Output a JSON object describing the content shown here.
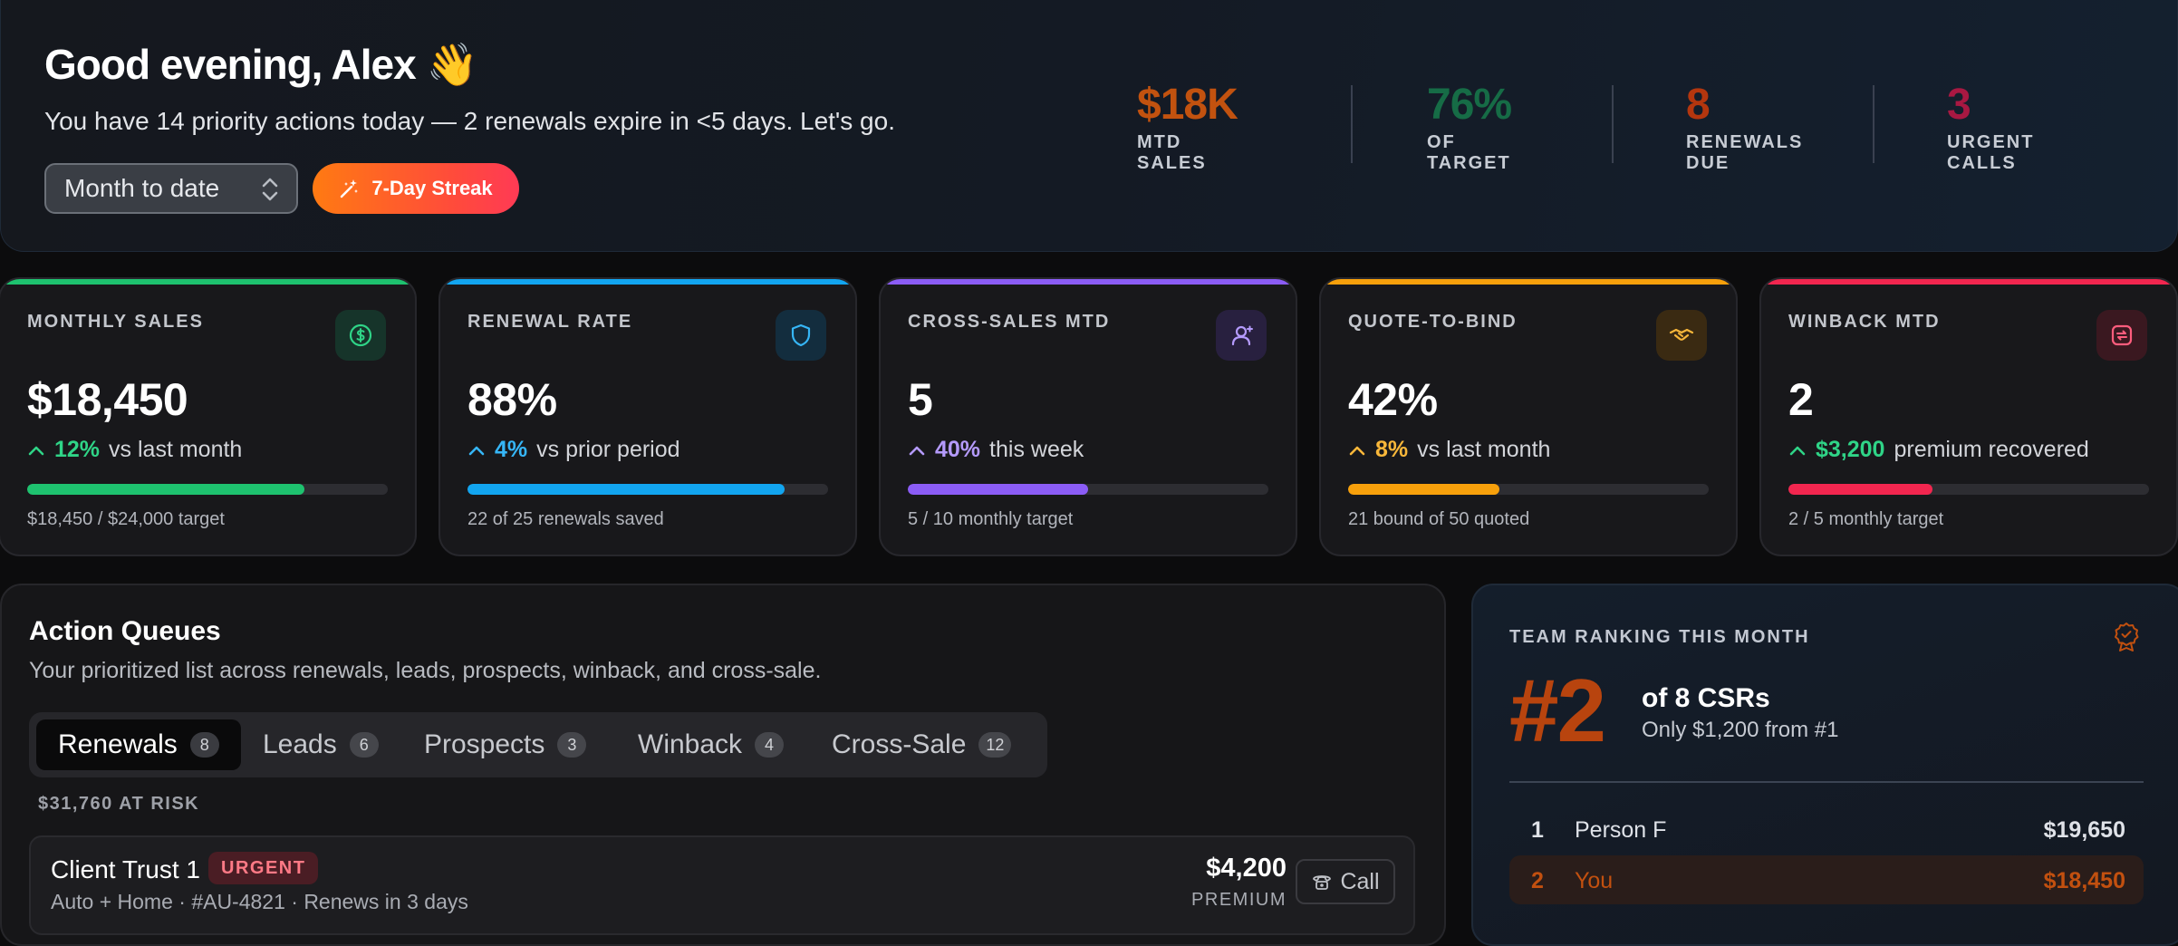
{
  "header": {
    "greeting": "Good evening, Alex 👋",
    "subline": "You have 14 priority actions today — 2 renewals expire in <5 days. Let's go.",
    "period_select": "Month to date",
    "streak_label": "7-Day Streak",
    "kpis": [
      {
        "value": "$18K",
        "label": "MTD SALES",
        "color": "#c2520f"
      },
      {
        "value": "76%",
        "label": "OF TARGET",
        "color": "#166c46"
      },
      {
        "value": "8",
        "label": "RENEWALS DUE",
        "color": "#b4360e"
      },
      {
        "value": "3",
        "label": "URGENT CALLS",
        "color": "#a81842"
      }
    ]
  },
  "cards": [
    {
      "title": "MONTHLY SALES",
      "icon": "dollar-circle-icon",
      "accent": "#1ec26f",
      "value": "$18,450",
      "delta": "12%",
      "delta_text": "vs last month",
      "progress": 0.76875,
      "footer": "$18,450 / $24,000 target"
    },
    {
      "title": "RENEWAL RATE",
      "icon": "shield-icon",
      "accent": "#12a5f0",
      "value": "88%",
      "delta": "4%",
      "delta_text": "vs prior period",
      "progress": 0.88,
      "footer": "22 of 25 renewals saved"
    },
    {
      "title": "CROSS-SALES MTD",
      "icon": "user-plus-icon",
      "accent": "#8b5cf6",
      "value": "5",
      "delta": "40%",
      "delta_text": "this week",
      "progress": 0.5,
      "footer": "5 / 10 monthly target"
    },
    {
      "title": "QUOTE-TO-BIND",
      "icon": "handshake-icon",
      "accent": "#f7a00b",
      "value": "42%",
      "delta": "8%",
      "delta_text": "vs last month",
      "progress": 0.42,
      "footer": "21 bound of 50 quoted"
    },
    {
      "title": "WINBACK MTD",
      "icon": "refresh-box-icon",
      "accent": "#f2264f",
      "value": "2",
      "delta": "$3,200",
      "delta_text": "premium recovered",
      "progress": 0.4,
      "footer": "2 / 5 monthly target"
    }
  ],
  "queues": {
    "title": "Action Queues",
    "subtitle": "Your prioritized list across renewals, leads, prospects, winback, and cross-sale.",
    "tabs": [
      {
        "label": "Renewals",
        "count": "8"
      },
      {
        "label": "Leads",
        "count": "6"
      },
      {
        "label": "Prospects",
        "count": "3"
      },
      {
        "label": "Winback",
        "count": "4"
      },
      {
        "label": "Cross-Sale",
        "count": "12"
      }
    ],
    "at_risk": "$31,760 AT RISK",
    "rows": [
      {
        "client": "Client Trust 1",
        "badge": "URGENT",
        "meta": "Auto + Home · #AU-4821 · Renews in 3 days",
        "amount": "$4,200",
        "amount_label": "PREMIUM",
        "action": "Call"
      }
    ]
  },
  "ranking": {
    "title": "TEAM RANKING THIS MONTH",
    "rank": "#2",
    "of": "of 8 CSRs",
    "gap": "Only $1,200 from #1",
    "rows": [
      {
        "pos": "1",
        "name": "Person F",
        "amount": "$19,650"
      },
      {
        "pos": "2",
        "name": "You",
        "amount": "$18,450"
      }
    ]
  }
}
